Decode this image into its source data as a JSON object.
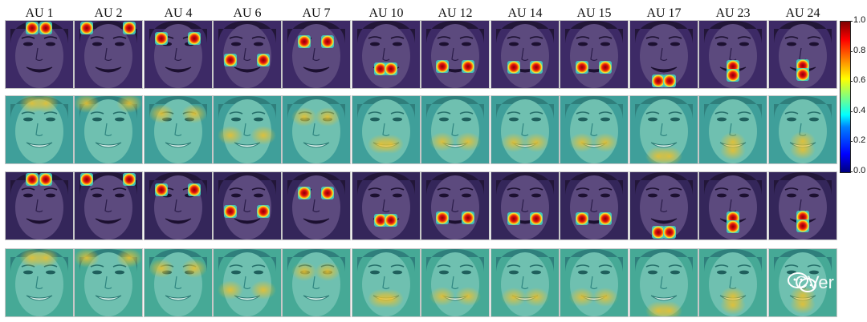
{
  "columns": [
    "AU 1",
    "AU 2",
    "AU 4",
    "AU 6",
    "AU 7",
    "AU 10",
    "AU 12",
    "AU 14",
    "AU 15",
    "AU 17",
    "AU 23",
    "AU 24"
  ],
  "colorbar": {
    "ticks": [
      "1.0",
      "0.8",
      "0.6",
      "0.4",
      "0.2",
      "0.0"
    ],
    "range": [
      0,
      1
    ]
  },
  "watermark": "CVer",
  "colors": {
    "hot_row_tint": "#3b1c5e",
    "soft_row_tint": "#3aa7a0",
    "hotspot_core": "#b00000",
    "soft_hotspot": "#e0c040"
  }
}
